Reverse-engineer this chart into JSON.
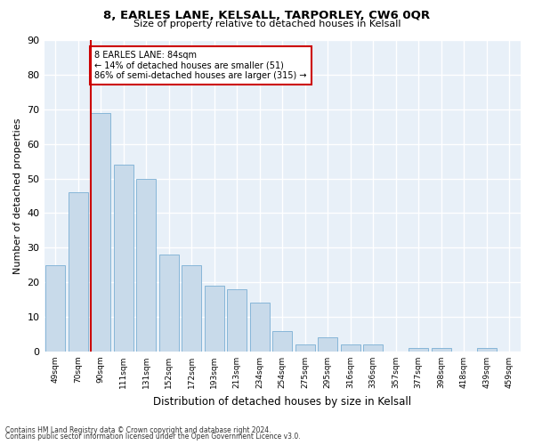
{
  "title1": "8, EARLES LANE, KELSALL, TARPORLEY, CW6 0QR",
  "title2": "Size of property relative to detached houses in Kelsall",
  "xlabel": "Distribution of detached houses by size in Kelsall",
  "ylabel": "Number of detached properties",
  "categories": [
    "49sqm",
    "70sqm",
    "90sqm",
    "111sqm",
    "131sqm",
    "152sqm",
    "172sqm",
    "193sqm",
    "213sqm",
    "234sqm",
    "254sqm",
    "275sqm",
    "295sqm",
    "316sqm",
    "336sqm",
    "357sqm",
    "377sqm",
    "398sqm",
    "418sqm",
    "439sqm",
    "459sqm"
  ],
  "values": [
    25,
    46,
    69,
    54,
    50,
    28,
    25,
    19,
    18,
    14,
    6,
    2,
    4,
    2,
    2,
    0,
    1,
    1,
    0,
    1,
    0
  ],
  "bar_color": "#c8daea",
  "bar_edge_color": "#7aafd4",
  "highlight_line_color": "#cc0000",
  "annotation_line1": "8 EARLES LANE: 84sqm",
  "annotation_line2": "← 14% of detached houses are smaller (51)",
  "annotation_line3": "86% of semi-detached houses are larger (315) →",
  "annotation_box_color": "#ffffff",
  "annotation_box_edge": "#cc0000",
  "ylim": [
    0,
    90
  ],
  "yticks": [
    0,
    10,
    20,
    30,
    40,
    50,
    60,
    70,
    80,
    90
  ],
  "background_color": "#e8f0f8",
  "grid_color": "#ffffff",
  "footer1": "Contains HM Land Registry data © Crown copyright and database right 2024.",
  "footer2": "Contains public sector information licensed under the Open Government Licence v3.0."
}
